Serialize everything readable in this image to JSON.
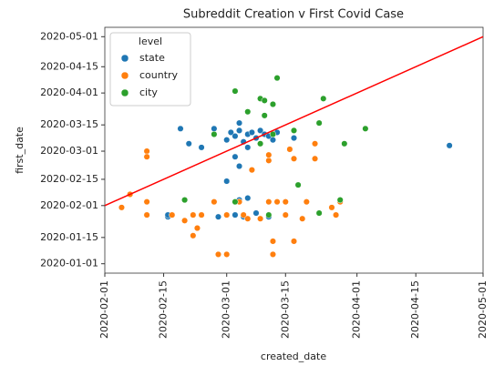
{
  "chart_data": {
    "type": "scatter",
    "title": "Subreddit Creation v First Covid Case",
    "x_label": "created_date",
    "y_label": "first_date",
    "legend_title": "level",
    "legend": "upper left",
    "xlim": [
      "2020-02-01",
      "2020-05-01"
    ],
    "ylim": [
      "2019-12-27",
      "2020-05-06"
    ],
    "xticks": [
      "2020-02-01",
      "2020-02-15",
      "2020-03-01",
      "2020-03-15",
      "2020-04-01",
      "2020-04-15",
      "2020-05-01"
    ],
    "yticks": [
      "2020-01-01",
      "2020-01-15",
      "2020-02-01",
      "2020-02-15",
      "2020-03-01",
      "2020-03-15",
      "2020-04-01",
      "2020-04-15",
      "2020-05-01"
    ],
    "identity_line_color": "#ff0000",
    "series": [
      {
        "name": "state",
        "color": "#1f77b4",
        "x": [
          "2020-02-19",
          "2020-02-21",
          "2020-02-24",
          "2020-02-27",
          "2020-03-04",
          "2020-03-01",
          "2020-03-02",
          "2020-03-03",
          "2020-03-04",
          "2020-03-05",
          "2020-03-06",
          "2020-03-07",
          "2020-03-08",
          "2020-03-09",
          "2020-03-10",
          "2020-03-11",
          "2020-03-12",
          "2020-03-13",
          "2020-03-17",
          "2020-03-06",
          "2020-03-03",
          "2020-03-04",
          "2020-03-01",
          "2020-04-23",
          "2020-02-16",
          "2020-02-28",
          "2020-03-03",
          "2020-03-05",
          "2020-03-08",
          "2020-03-11",
          "2020-03-04",
          "2020-03-06",
          "2020-02-16"
        ],
        "values": [
          "2020-03-13",
          "2020-03-05",
          "2020-03-03",
          "2020-03-13",
          "2020-03-16",
          "2020-03-07",
          "2020-03-11",
          "2020-03-09",
          "2020-03-12",
          "2020-03-06",
          "2020-03-10",
          "2020-03-11",
          "2020-03-08",
          "2020-03-12",
          "2020-03-10",
          "2020-03-09",
          "2020-03-07",
          "2020-03-11",
          "2020-03-08",
          "2020-03-03",
          "2020-02-27",
          "2020-02-22",
          "2020-02-14",
          "2020-03-04",
          "2020-01-26",
          "2020-01-26",
          "2020-01-27",
          "2020-01-26",
          "2020-01-28",
          "2020-01-26",
          "2020-02-04",
          "2020-02-05",
          "2020-01-27"
        ]
      },
      {
        "name": "country",
        "color": "#ff7f0e",
        "x": [
          "2020-02-05",
          "2020-02-07",
          "2020-02-11",
          "2020-02-11",
          "2020-02-11",
          "2020-02-11",
          "2020-02-17",
          "2020-02-20",
          "2020-02-22",
          "2020-02-22",
          "2020-02-23",
          "2020-02-24",
          "2020-02-27",
          "2020-02-28",
          "2020-03-01",
          "2020-03-01",
          "2020-03-04",
          "2020-03-05",
          "2020-03-06",
          "2020-03-07",
          "2020-03-09",
          "2020-03-11",
          "2020-03-11",
          "2020-03-12",
          "2020-03-12",
          "2020-03-13",
          "2020-03-15",
          "2020-03-15",
          "2020-03-17",
          "2020-03-16",
          "2020-03-17",
          "2020-03-19",
          "2020-03-20",
          "2020-03-22",
          "2020-03-22",
          "2020-03-27",
          "2020-03-28",
          "2020-03-26",
          "2020-03-09",
          "2020-03-11"
        ],
        "values": [
          "2020-01-31",
          "2020-02-07",
          "2020-02-03",
          "2020-01-27",
          "2020-03-01",
          "2020-02-27",
          "2020-01-27",
          "2020-01-24",
          "2020-01-27",
          "2020-01-16",
          "2020-01-20",
          "2020-01-27",
          "2020-02-03",
          "2020-01-06",
          "2020-01-06",
          "2020-01-27",
          "2020-02-03",
          "2020-01-27",
          "2020-01-25",
          "2020-02-20",
          "2020-01-25",
          "2020-02-03",
          "2020-02-25",
          "2020-01-13",
          "2020-01-06",
          "2020-02-03",
          "2020-02-03",
          "2020-01-27",
          "2020-01-13",
          "2020-03-02",
          "2020-02-26",
          "2020-01-25",
          "2020-02-03",
          "2020-03-05",
          "2020-02-26",
          "2020-01-27",
          "2020-02-03",
          "2020-01-31",
          "2020-03-05",
          "2020-02-28"
        ]
      },
      {
        "name": "city",
        "color": "#2ca02c",
        "x": [
          "2020-03-03",
          "2020-03-09",
          "2020-03-10",
          "2020-03-13",
          "2020-03-12",
          "2020-03-06",
          "2020-03-10",
          "2020-03-12",
          "2020-03-09",
          "2020-03-24",
          "2020-03-23",
          "2020-03-29",
          "2020-04-03",
          "2020-03-18",
          "2020-02-20",
          "2020-03-28",
          "2020-03-23",
          "2020-03-11",
          "2020-03-03",
          "2020-03-17",
          "2020-02-27"
        ],
        "values": [
          "2020-04-02",
          "2020-03-29",
          "2020-03-28",
          "2020-04-09",
          "2020-03-26",
          "2020-03-22",
          "2020-03-20",
          "2020-03-10",
          "2020-03-05",
          "2020-03-29",
          "2020-03-16",
          "2020-03-05",
          "2020-03-13",
          "2020-02-12",
          "2020-02-04",
          "2020-02-04",
          "2020-01-28",
          "2020-01-27",
          "2020-02-03",
          "2020-03-12",
          "2020-03-10"
        ]
      }
    ]
  }
}
